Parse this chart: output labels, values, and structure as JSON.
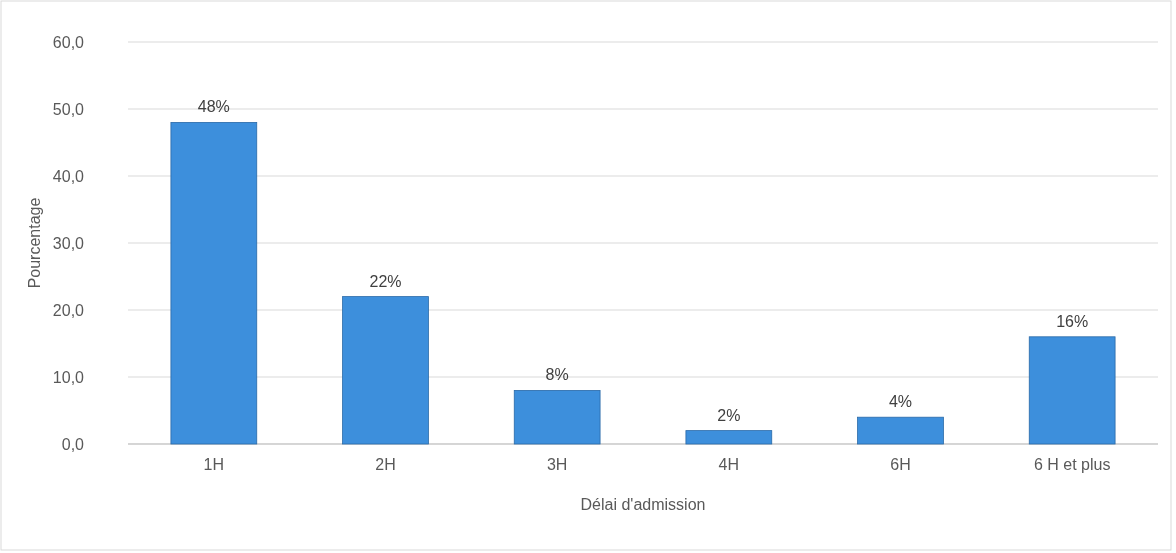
{
  "chart_data": {
    "type": "bar",
    "xlabel": "Délai d'admission",
    "ylabel": "Pourcentage",
    "categories": [
      "1H",
      "2H",
      "3H",
      "4H",
      "6H",
      "6 H et plus"
    ],
    "values": [
      48,
      22,
      8,
      2,
      4,
      16
    ],
    "value_labels": [
      "48%",
      "22%",
      "8%",
      "2%",
      "4%",
      "16%"
    ],
    "color": "#3d8fdc",
    "ylim": [
      0,
      60
    ],
    "yticks": [
      {
        "value": 0,
        "label": "0,0"
      },
      {
        "value": 10,
        "label": "10,0"
      },
      {
        "value": 20,
        "label": "20,0"
      },
      {
        "value": 30,
        "label": "30,0"
      },
      {
        "value": 40,
        "label": "40,0"
      },
      {
        "value": 50,
        "label": "50,0"
      },
      {
        "value": 60,
        "label": "60,0"
      }
    ],
    "grid": "y"
  }
}
